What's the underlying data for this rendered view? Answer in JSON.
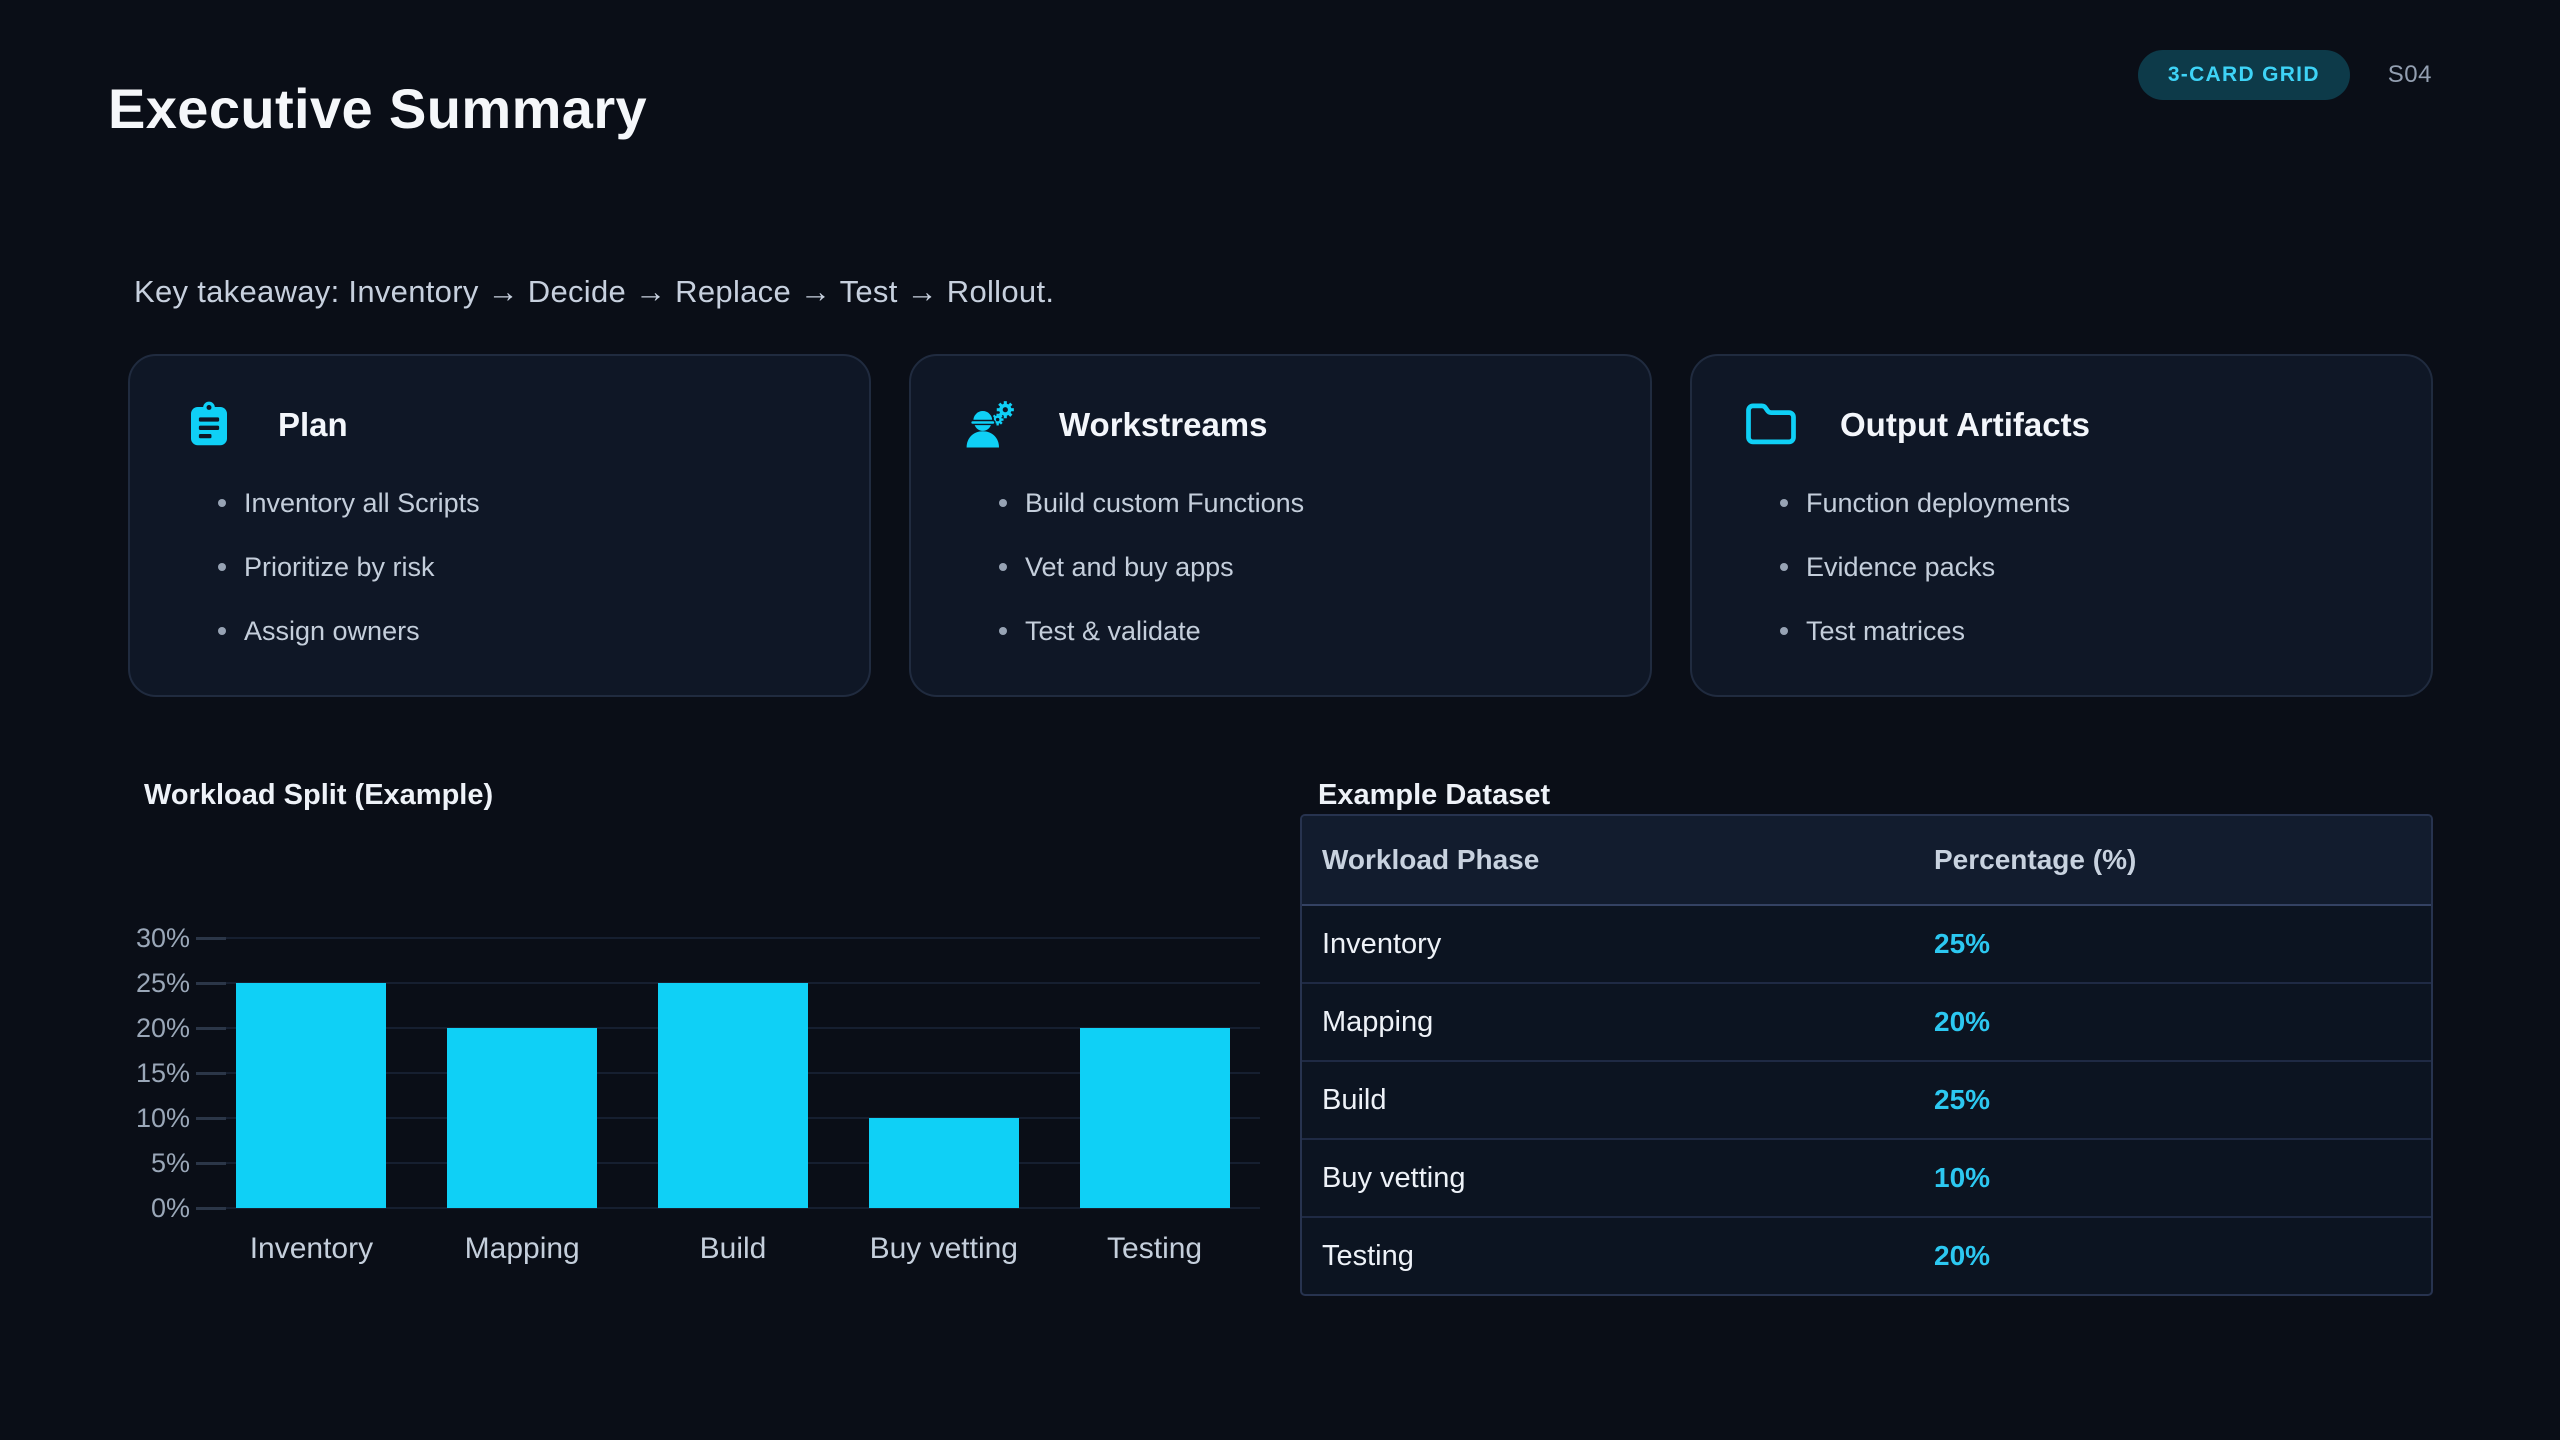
{
  "header": {
    "title": "Executive Summary",
    "badge": "3-CARD GRID",
    "slide_code": "S04"
  },
  "takeaway": "Key takeaway: Inventory → Decide → Replace → Test → Rollout.",
  "cards": [
    {
      "icon": "clipboard-list-icon",
      "title": "Plan",
      "bullets": [
        "Inventory all Scripts",
        "Prioritize by risk",
        "Assign owners"
      ]
    },
    {
      "icon": "worker-gear-icon",
      "title": "Workstreams",
      "bullets": [
        "Build custom Functions",
        "Vet and buy apps",
        "Test & validate"
      ]
    },
    {
      "icon": "folder-icon",
      "title": "Output Artifacts",
      "bullets": [
        "Function deployments",
        "Evidence packs",
        "Test matrices"
      ]
    }
  ],
  "chart_data": {
    "type": "bar",
    "title": "Workload Split (Example)",
    "categories": [
      "Inventory",
      "Mapping",
      "Build",
      "Buy vetting",
      "Testing"
    ],
    "values": [
      25,
      20,
      25,
      10,
      20
    ],
    "unit": "%",
    "xlabel": "",
    "ylabel": "",
    "ylim": [
      0,
      30
    ],
    "yticks": [
      0,
      5,
      10,
      15,
      20,
      25,
      30
    ],
    "grid": true,
    "legend": false,
    "bar_color": "#0fd0f6"
  },
  "table": {
    "title": "Example Dataset",
    "columns": [
      "Workload Phase",
      "Percentage (%)"
    ],
    "rows": [
      {
        "phase": "Inventory",
        "percentage": "25%"
      },
      {
        "phase": "Mapping",
        "percentage": "20%"
      },
      {
        "phase": "Build",
        "percentage": "25%"
      },
      {
        "phase": "Buy vetting",
        "percentage": "10%"
      },
      {
        "phase": "Testing",
        "percentage": "20%"
      }
    ]
  },
  "colors": {
    "background": "#0a0e17",
    "card_background": "#0f1726",
    "accent": "#0fd0f6",
    "percent_text": "#2cc8f1",
    "badge_background": "#0d3a49",
    "badge_text": "#3ed3f6"
  }
}
